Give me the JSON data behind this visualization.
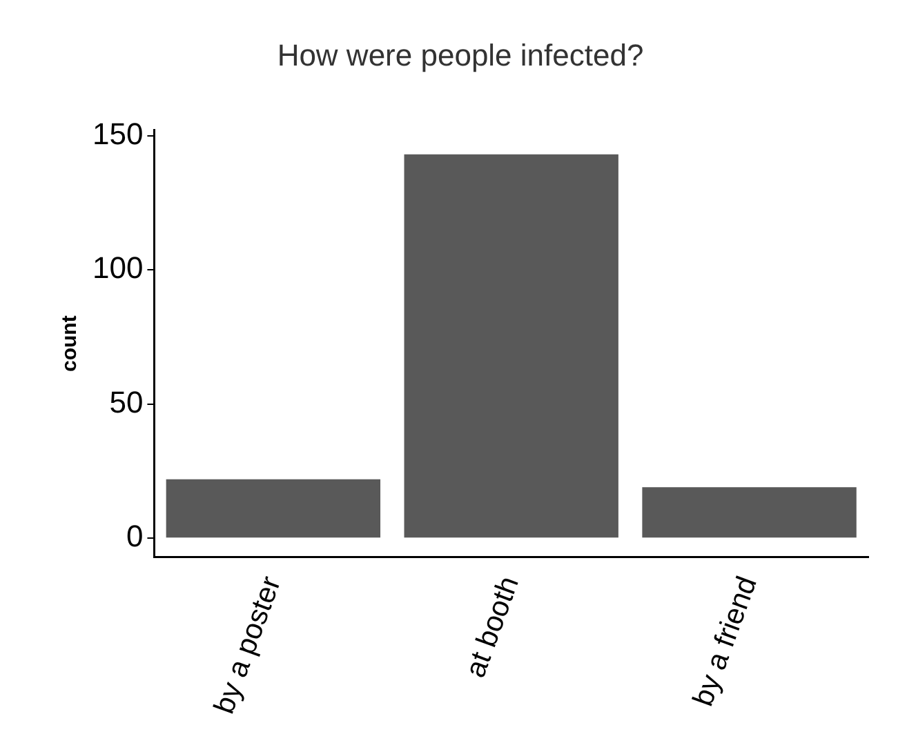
{
  "chart_data": {
    "type": "bar",
    "title": "How were people infected?",
    "ylabel": "count",
    "categories": [
      "by a poster",
      "at booth",
      "by a friend"
    ],
    "values": [
      22,
      143,
      19
    ],
    "color": "#595959",
    "ylim": [
      -7,
      152
    ],
    "yticks": [
      0,
      50,
      100,
      150
    ],
    "grid": false,
    "legend": false
  }
}
